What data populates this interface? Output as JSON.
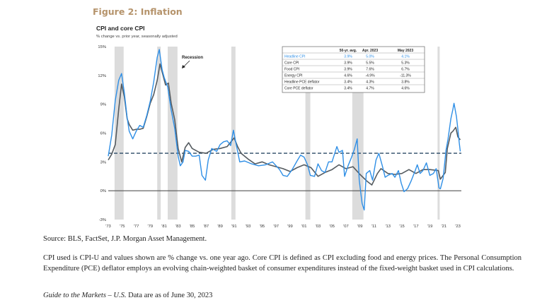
{
  "figure_title": "Figure 2: Inflation",
  "chart_data": {
    "type": "line",
    "title": "CPI and core CPI",
    "subtitle": "% change vs. prior year, seasonally adjusted",
    "ylim": [
      -3,
      15
    ],
    "yticks": [
      "15%",
      "12%",
      "9%",
      "6%",
      "3%",
      "0%",
      "-3%"
    ],
    "ytick_values": [
      15,
      12,
      9,
      6,
      3,
      0,
      -3
    ],
    "xlim": [
      1973,
      2023.5
    ],
    "xticks": [
      "'73",
      "'75",
      "'77",
      "'79",
      "'81",
      "'83",
      "'85",
      "'87",
      "'89",
      "'91",
      "'93",
      "'95",
      "'97",
      "'99",
      "'01",
      "'03",
      "'05",
      "'07",
      "'09",
      "'11",
      "'13",
      "'15",
      "'17",
      "'19",
      "'21",
      "'23"
    ],
    "recession_label": "Recession",
    "recessions": [
      [
        1973.9,
        1975.2
      ],
      [
        1980.0,
        1980.5
      ],
      [
        1981.5,
        1982.9
      ],
      [
        1990.6,
        1991.2
      ],
      [
        2001.2,
        2001.9
      ],
      [
        2007.9,
        2009.5
      ],
      [
        2020.1,
        2020.4
      ]
    ],
    "reference_line": 3.9,
    "series": [
      {
        "name": "Headline CPI",
        "color": "#2f8fe6",
        "points": [
          [
            1973,
            3.6
          ],
          [
            1973.5,
            5.8
          ],
          [
            1974,
            9.4
          ],
          [
            1974.5,
            11.5
          ],
          [
            1974.9,
            12.2
          ],
          [
            1975.3,
            10.2
          ],
          [
            1975.7,
            7.6
          ],
          [
            1976,
            6.2
          ],
          [
            1976.5,
            5.4
          ],
          [
            1977,
            6.2
          ],
          [
            1977.5,
            6.8
          ],
          [
            1978,
            6.6
          ],
          [
            1978.5,
            7.8
          ],
          [
            1979,
            9.3
          ],
          [
            1979.5,
            11.3
          ],
          [
            1980,
            13.9
          ],
          [
            1980.3,
            14.7
          ],
          [
            1980.7,
            12.6
          ],
          [
            1981,
            11.8
          ],
          [
            1981.5,
            10.8
          ],
          [
            1982,
            8.4
          ],
          [
            1982.5,
            6.5
          ],
          [
            1983,
            3.6
          ],
          [
            1983.3,
            2.6
          ],
          [
            1983.7,
            3.0
          ],
          [
            1984,
            4.2
          ],
          [
            1984.5,
            4.1
          ],
          [
            1985,
            3.6
          ],
          [
            1985.5,
            3.6
          ],
          [
            1986,
            3.7
          ],
          [
            1986.4,
            1.6
          ],
          [
            1986.9,
            1.1
          ],
          [
            1987.3,
            3.2
          ],
          [
            1987.8,
            4.4
          ],
          [
            1988.5,
            4.1
          ],
          [
            1989,
            4.8
          ],
          [
            1989.5,
            5.1
          ],
          [
            1990,
            5.2
          ],
          [
            1990.5,
            4.7
          ],
          [
            1990.9,
            6.3
          ],
          [
            1991.3,
            4.8
          ],
          [
            1991.8,
            3.0
          ],
          [
            1992.5,
            3.1
          ],
          [
            1993.5,
            2.8
          ],
          [
            1994.5,
            2.6
          ],
          [
            1995.5,
            2.7
          ],
          [
            1996.5,
            3.0
          ],
          [
            1997.5,
            2.2
          ],
          [
            1998,
            1.6
          ],
          [
            1998.6,
            1.5
          ],
          [
            1999.3,
            2.2
          ],
          [
            2000,
            3.1
          ],
          [
            2000.5,
            3.7
          ],
          [
            2001,
            3.5
          ],
          [
            2001.5,
            2.7
          ],
          [
            2001.9,
            1.6
          ],
          [
            2002.5,
            1.5
          ],
          [
            2003,
            2.8
          ],
          [
            2003.5,
            2.1
          ],
          [
            2004,
            1.9
          ],
          [
            2004.5,
            3.0
          ],
          [
            2005,
            3.0
          ],
          [
            2005.7,
            4.6
          ],
          [
            2006,
            4.0
          ],
          [
            2006.5,
            4.2
          ],
          [
            2006.8,
            1.5
          ],
          [
            2007.3,
            2.6
          ],
          [
            2007.8,
            3.5
          ],
          [
            2008.2,
            4.3
          ],
          [
            2008.6,
            5.4
          ],
          [
            2008.9,
            1.1
          ],
          [
            2009.3,
            -1.3
          ],
          [
            2009.6,
            -2.0
          ],
          [
            2009.9,
            1.8
          ],
          [
            2010.4,
            2.1
          ],
          [
            2010.8,
            1.1
          ],
          [
            2011.3,
            3.2
          ],
          [
            2011.7,
            3.9
          ],
          [
            2012.2,
            2.6
          ],
          [
            2012.6,
            1.4
          ],
          [
            2013,
            1.6
          ],
          [
            2013.6,
            1.8
          ],
          [
            2014,
            1.4
          ],
          [
            2014.5,
            2.1
          ],
          [
            2014.9,
            0.8
          ],
          [
            2015.3,
            -0.1
          ],
          [
            2015.8,
            0.2
          ],
          [
            2016.3,
            1.0
          ],
          [
            2016.9,
            2.1
          ],
          [
            2017.2,
            2.7
          ],
          [
            2017.6,
            1.8
          ],
          [
            2018,
            2.1
          ],
          [
            2018.5,
            2.9
          ],
          [
            2019,
            1.6
          ],
          [
            2019.5,
            1.8
          ],
          [
            2019.9,
            2.3
          ],
          [
            2020.3,
            0.3
          ],
          [
            2020.5,
            0.2
          ],
          [
            2020.9,
            1.3
          ],
          [
            2021.3,
            4.2
          ],
          [
            2021.6,
            5.4
          ],
          [
            2022,
            7.5
          ],
          [
            2022.3,
            8.5
          ],
          [
            2022.45,
            9.1
          ],
          [
            2022.8,
            7.7
          ],
          [
            2023,
            6.4
          ],
          [
            2023.2,
            5.0
          ],
          [
            2023.35,
            4.1
          ]
        ]
      },
      {
        "name": "Core CPI",
        "color": "#555b60",
        "points": [
          [
            1973,
            3.2
          ],
          [
            1973.5,
            3.8
          ],
          [
            1974,
            4.8
          ],
          [
            1974.5,
            8.5
          ],
          [
            1974.9,
            11.1
          ],
          [
            1975.3,
            9.8
          ],
          [
            1975.7,
            7.5
          ],
          [
            1976,
            6.9
          ],
          [
            1976.5,
            6.3
          ],
          [
            1977,
            6.4
          ],
          [
            1977.5,
            6.4
          ],
          [
            1978,
            6.5
          ],
          [
            1978.5,
            7.7
          ],
          [
            1979,
            9.1
          ],
          [
            1979.5,
            10.0
          ],
          [
            1980,
            11.5
          ],
          [
            1980.4,
            13.2
          ],
          [
            1980.8,
            12.1
          ],
          [
            1981.2,
            11.0
          ],
          [
            1981.6,
            11.2
          ],
          [
            1982,
            9.1
          ],
          [
            1982.5,
            7.4
          ],
          [
            1983,
            4.4
          ],
          [
            1983.5,
            3.0
          ],
          [
            1984,
            4.5
          ],
          [
            1984.5,
            5.0
          ],
          [
            1985,
            4.4
          ],
          [
            1986,
            4.0
          ],
          [
            1987,
            3.9
          ],
          [
            1988,
            4.3
          ],
          [
            1989,
            4.4
          ],
          [
            1990,
            4.6
          ],
          [
            1991,
            5.5
          ],
          [
            1991.5,
            4.6
          ],
          [
            1992,
            3.9
          ],
          [
            1993,
            3.3
          ],
          [
            1994,
            2.8
          ],
          [
            1995,
            3.0
          ],
          [
            1996,
            2.7
          ],
          [
            1997,
            2.5
          ],
          [
            1998,
            2.3
          ],
          [
            1999,
            2.0
          ],
          [
            2000,
            2.4
          ],
          [
            2001,
            2.7
          ],
          [
            2002,
            2.4
          ],
          [
            2003,
            1.5
          ],
          [
            2004,
            1.9
          ],
          [
            2005,
            2.2
          ],
          [
            2006,
            2.7
          ],
          [
            2007,
            2.3
          ],
          [
            2008,
            2.5
          ],
          [
            2009,
            1.7
          ],
          [
            2010,
            1.0
          ],
          [
            2010.7,
            0.6
          ],
          [
            2011.5,
            1.8
          ],
          [
            2012,
            2.3
          ],
          [
            2013,
            1.8
          ],
          [
            2014,
            1.7
          ],
          [
            2015,
            1.8
          ],
          [
            2016,
            2.2
          ],
          [
            2017,
            1.8
          ],
          [
            2018,
            2.2
          ],
          [
            2019,
            2.2
          ],
          [
            2020.2,
            2.1
          ],
          [
            2020.5,
            1.2
          ],
          [
            2020.9,
            1.6
          ],
          [
            2021.2,
            1.9
          ],
          [
            2021.5,
            4.4
          ],
          [
            2022,
            6.0
          ],
          [
            2022.3,
            6.2
          ],
          [
            2022.7,
            6.6
          ],
          [
            2023,
            5.6
          ],
          [
            2023.35,
            5.3
          ]
        ]
      }
    ],
    "table": {
      "headers": [
        "",
        "50-yr. avg.",
        "Apr. 2023",
        "May 2023"
      ],
      "rows": [
        [
          "Headline CPI",
          "3.9%",
          "5.0%",
          "4.1%"
        ],
        [
          "Core CPI",
          "3.9%",
          "5.5%",
          "5.3%"
        ],
        [
          "Food CPI",
          "3.9%",
          "7.6%",
          "6.7%"
        ],
        [
          "Energy CPI",
          "4.6%",
          "-4.9%",
          "-11.3%"
        ],
        [
          "Headline PCE deflator",
          "3.4%",
          "4.3%",
          "3.8%"
        ],
        [
          "Core PCE deflator",
          "3.4%",
          "4.7%",
          "4.6%"
        ]
      ],
      "highlight_color": "#2f8fe6"
    }
  },
  "source_text": "Source: BLS, FactSet, J.P. Morgan Asset Management.",
  "note_text": "CPI used is CPI-U and values shown are % change vs. one year ago. Core CPI is defined as CPI excluding food and energy prices. The Personal Consumption Expenditure (PCE) deflator employs an evolving chain-weighted basket of consumer expenditures instead of the fixed-weight basket used in CPI calculations.",
  "guide_title": "Guide to the Markets – U.S.",
  "guide_date": " Data are as of June 30, 2023"
}
